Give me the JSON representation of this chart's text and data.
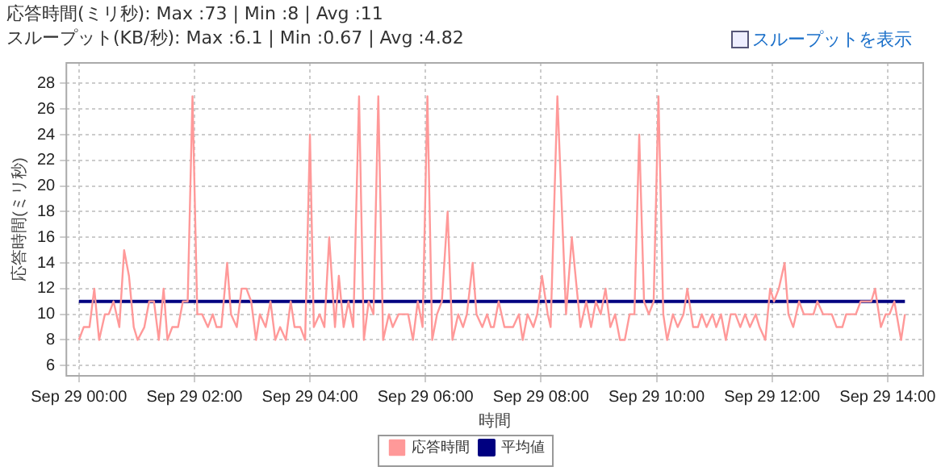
{
  "chart_data": {
    "type": "line",
    "title": "応答時間(ミリ秒): Max :73 | Min :8 | Avg :11",
    "subtitle": "スループット(KB/秒): Max :6.1 | Min :0.67 | Avg :4.82",
    "annotations": [
      "スループットを表示"
    ],
    "xlabel": "時間",
    "ylabel": "応答時間(ミリ秒)",
    "xlim": [
      "--09-28T23:47",
      "--09-29T14:37"
    ],
    "xticks": [
      {
        "value": "--09-29T00:00",
        "label": "Sep 29 00:00"
      },
      {
        "value": "--09-29T02:00",
        "label": "Sep 29 02:00"
      },
      {
        "value": "--09-29T04:00",
        "label": "Sep 29 04:00"
      },
      {
        "value": "--09-29T06:00",
        "label": "Sep 29 06:00"
      },
      {
        "value": "--09-29T08:00",
        "label": "Sep 29 08:00"
      },
      {
        "value": "--09-29T10:00",
        "label": "Sep 29 10:00"
      },
      {
        "value": "--09-29T12:00",
        "label": "Sep 29 12:00"
      },
      {
        "value": "--09-29T14:00",
        "label": "Sep 29 14:00"
      }
    ],
    "ylim": [
      5.2,
      29.6
    ],
    "yticks": [
      6,
      8,
      10,
      12,
      14,
      16,
      18,
      20,
      22,
      24,
      26,
      28
    ],
    "grid": true,
    "legend": "bottom",
    "marker": "none",
    "line_style": "solid",
    "series": [
      {
        "name": "応答時間",
        "color": "#ff9999",
        "x": [
          "--09-29T00:00",
          "--09-29T00:05",
          "--09-29T00:11",
          "--09-29T00:16",
          "--09-29T00:21",
          "--09-29T00:27",
          "--09-29T00:31",
          "--09-29T00:36",
          "--09-29T00:42",
          "--09-29T00:47",
          "--09-29T00:52",
          "--09-29T00:57",
          "--09-29T01:01",
          "--09-29T01:08",
          "--09-29T01:13",
          "--09-29T01:18",
          "--09-29T01:23",
          "--09-29T01:28",
          "--09-29T01:32",
          "--09-29T01:37",
          "--09-29T01:43",
          "--09-29T01:48",
          "--09-29T01:53",
          "--09-29T01:58",
          "--09-29T02:03",
          "--09-29T02:08",
          "--09-29T02:14",
          "--09-29T02:19",
          "--09-29T02:23",
          "--09-29T02:28",
          "--09-29T02:34",
          "--09-29T02:38",
          "--09-29T02:44",
          "--09-29T02:49",
          "--09-29T02:54",
          "--09-29T02:59",
          "--09-29T03:04",
          "--09-29T03:08",
          "--09-29T03:14",
          "--09-29T03:19",
          "--09-29T03:24",
          "--09-29T03:29",
          "--09-29T03:35",
          "--09-29T03:40",
          "--09-29T03:44",
          "--09-29T03:50",
          "--09-29T03:55",
          "--09-29T04:00",
          "--09-29T04:04",
          "--09-29T04:10",
          "--09-29T04:15",
          "--09-29T04:20",
          "--09-29T04:26",
          "--09-29T04:30",
          "--09-29T04:35",
          "--09-29T04:40",
          "--09-29T04:45",
          "--09-29T04:51",
          "--09-29T04:56",
          "--09-29T05:01",
          "--09-29T05:06",
          "--09-29T05:11",
          "--09-29T05:16",
          "--09-29T05:22",
          "--09-29T05:26",
          "--09-29T05:32",
          "--09-29T05:37",
          "--09-29T05:42",
          "--09-29T05:47",
          "--09-29T05:52",
          "--09-29T05:57",
          "--09-29T06:02",
          "--09-29T06:07",
          "--09-29T06:12",
          "--09-29T06:17",
          "--09-29T06:23",
          "--09-29T06:28",
          "--09-29T06:34",
          "--09-29T06:39",
          "--09-29T06:43",
          "--09-29T06:49",
          "--09-29T06:53",
          "--09-29T06:59",
          "--09-29T07:04",
          "--09-29T07:08",
          "--09-29T07:11",
          "--09-29T07:16",
          "--09-29T07:22",
          "--09-29T07:26",
          "--09-29T07:31",
          "--09-29T07:37",
          "--09-29T07:41",
          "--09-29T07:46",
          "--09-29T07:52",
          "--09-29T07:56",
          "--09-29T08:01",
          "--09-29T08:07",
          "--09-29T08:10",
          "--09-29T08:17",
          "--09-29T08:26",
          "--09-29T08:32",
          "--09-29T08:41",
          "--09-29T08:47",
          "--09-29T08:52",
          "--09-29T08:57",
          "--09-29T09:02",
          "--09-29T09:07",
          "--09-29T09:12",
          "--09-29T09:17",
          "--09-29T09:22",
          "--09-29T09:27",
          "--09-29T09:32",
          "--09-29T09:37",
          "--09-29T09:42",
          "--09-29T09:47",
          "--09-29T09:52",
          "--09-29T09:57",
          "--09-29T10:02",
          "--09-29T10:07",
          "--09-29T10:11",
          "--09-29T10:17",
          "--09-29T10:22",
          "--09-29T10:28",
          "--09-29T10:32",
          "--09-29T10:38",
          "--09-29T10:43",
          "--09-29T10:47",
          "--09-29T10:52",
          "--09-29T10:58",
          "--09-29T11:02",
          "--09-29T11:07",
          "--09-29T11:12",
          "--09-29T11:17",
          "--09-29T11:22",
          "--09-29T11:27",
          "--09-29T11:32",
          "--09-29T11:37",
          "--09-29T11:43",
          "--09-29T11:47",
          "--09-29T11:53",
          "--09-29T11:58",
          "--09-29T12:02",
          "--09-29T12:07",
          "--09-29T12:13",
          "--09-29T12:17",
          "--09-29T12:22",
          "--09-29T12:28",
          "--09-29T12:33",
          "--09-29T12:38",
          "--09-29T12:43",
          "--09-29T12:47",
          "--09-29T12:53",
          "--09-29T12:58",
          "--09-29T13:02",
          "--09-29T13:07",
          "--09-29T13:13",
          "--09-29T13:17",
          "--09-29T13:22",
          "--09-29T13:27",
          "--09-29T13:32",
          "--09-29T13:38",
          "--09-29T13:43",
          "--09-29T13:47",
          "--09-29T13:53",
          "--09-29T13:58",
          "--09-29T14:02",
          "--09-29T14:07",
          "--09-29T14:14",
          "--09-29T14:18"
        ],
        "values": [
          8,
          9,
          9,
          12,
          8,
          10,
          10,
          11,
          9,
          15,
          13,
          9,
          8,
          9,
          11,
          11,
          8,
          12,
          8,
          9,
          9,
          11,
          11,
          27,
          10,
          10,
          9,
          10,
          9,
          9,
          14,
          10,
          9,
          12,
          12,
          11,
          8,
          10,
          9,
          11,
          8,
          9,
          8,
          11,
          9,
          9,
          8,
          24,
          9,
          10,
          9,
          16,
          9,
          13,
          9,
          11,
          9,
          27,
          8,
          11,
          10,
          27,
          8,
          10,
          9,
          10,
          10,
          10,
          8,
          11,
          9,
          27,
          8,
          10,
          11,
          18,
          8,
          10,
          9,
          10,
          14,
          10,
          9,
          10,
          9,
          9,
          11,
          9,
          9,
          9,
          10,
          8,
          10,
          9,
          10,
          13,
          10,
          9,
          27,
          10,
          16,
          9,
          11,
          9,
          11,
          10,
          12,
          9,
          10,
          8,
          8,
          10,
          10,
          24,
          11,
          10,
          11,
          27,
          10,
          8,
          10,
          9,
          10,
          12,
          9,
          9,
          10,
          9,
          10,
          9,
          10,
          8,
          10,
          10,
          9,
          10,
          9,
          10,
          9,
          8,
          12,
          11,
          12,
          14,
          10,
          9,
          11,
          10,
          10,
          10,
          11,
          10,
          10,
          10,
          9,
          9,
          10,
          10,
          10,
          11,
          11,
          11,
          12,
          9,
          10,
          10,
          11,
          8,
          10
        ]
      },
      {
        "name": "平均値",
        "color": "#000080",
        "x": [
          "--09-29T00:00",
          "--09-29T14:18"
        ],
        "values": [
          11,
          11
        ]
      }
    ]
  }
}
